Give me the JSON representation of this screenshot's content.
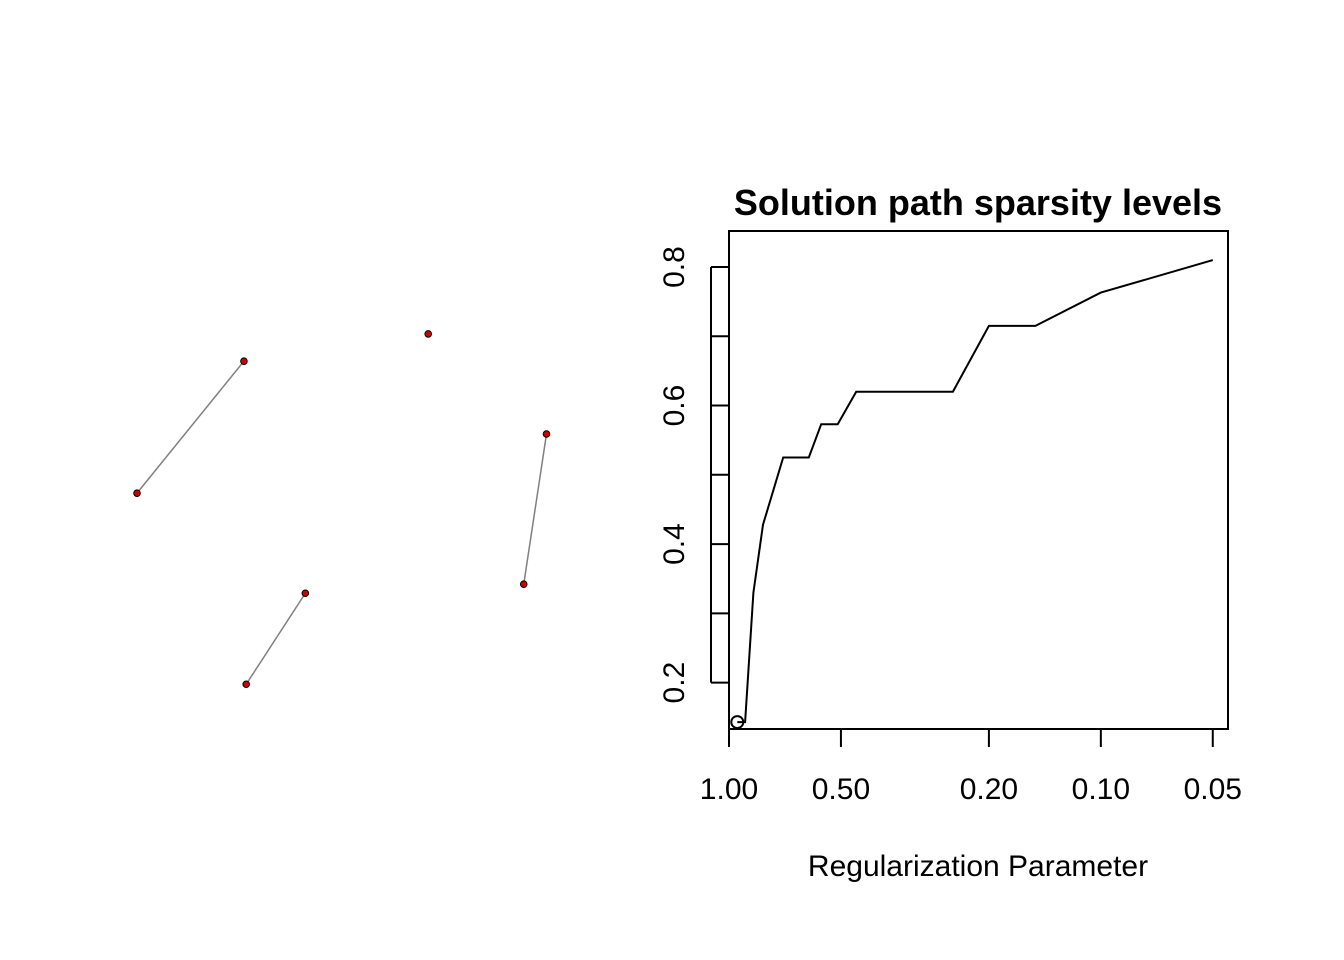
{
  "chart_data": [
    {
      "type": "network",
      "nodes": [
        {
          "id": "n1",
          "x": 0.235,
          "y": 0.76
        },
        {
          "id": "n2",
          "x": 0.64,
          "y": 0.82
        },
        {
          "id": "n3",
          "x": 0.0,
          "y": 0.47
        },
        {
          "id": "n4",
          "x": 0.9,
          "y": 0.6
        },
        {
          "id": "n5",
          "x": 0.85,
          "y": 0.27
        },
        {
          "id": "n6",
          "x": 0.37,
          "y": 0.25
        },
        {
          "id": "n7",
          "x": 0.24,
          "y": 0.05
        }
      ],
      "edges": [
        {
          "from": "n1",
          "to": "n3"
        },
        {
          "from": "n4",
          "to": "n5"
        },
        {
          "from": "n6",
          "to": "n7"
        }
      ],
      "node_color": "#cc0000",
      "edge_color": "#808080"
    },
    {
      "type": "line",
      "title": "Solution path sparsity levels",
      "xlabel": "Regularization Parameter",
      "ylabel": "",
      "x_scale": "log",
      "x_reversed": true,
      "xlim": [
        1.0,
        0.0455
      ],
      "ylim": [
        0.133,
        0.852
      ],
      "x_ticks": [
        1.0,
        0.5,
        0.2,
        0.1,
        0.05
      ],
      "x_tick_labels": [
        "1.00",
        "0.50",
        "0.20",
        "0.10",
        "0.05"
      ],
      "y_ticks": [
        0.2,
        0.3,
        0.4,
        0.5,
        0.6,
        0.7,
        0.8
      ],
      "y_tick_labels": [
        "0.2",
        "",
        "0.4",
        "",
        "0.6",
        "",
        "0.8"
      ],
      "grid": false,
      "series": [
        {
          "x": [
            0.95,
            0.905,
            0.86,
            0.81,
            0.715,
            0.61,
            0.565,
            0.51,
            0.455,
            0.25,
            0.2,
            0.15,
            0.1,
            0.05
          ],
          "y": [
            0.143,
            0.143,
            0.33,
            0.428,
            0.525,
            0.525,
            0.573,
            0.573,
            0.62,
            0.62,
            0.715,
            0.715,
            0.763,
            0.81
          ]
        }
      ],
      "marker": {
        "x": 0.95,
        "y": 0.143,
        "shape": "open-circle"
      }
    }
  ]
}
